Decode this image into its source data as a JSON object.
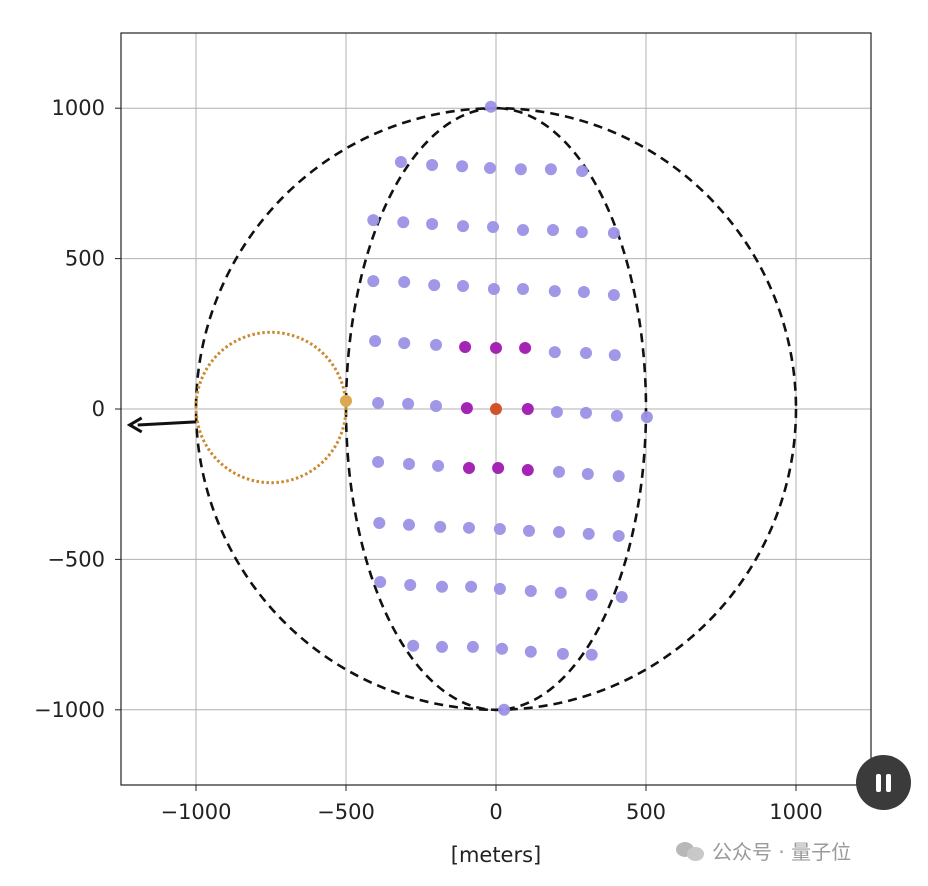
{
  "chart_data": {
    "type": "scatter",
    "xlabel": "[meters]",
    "ylabel": "",
    "xlim": [
      -1250,
      1250
    ],
    "ylim": [
      -1250,
      1250
    ],
    "xticks": [
      -1000,
      -500,
      0,
      500,
      1000
    ],
    "yticks": [
      -1000,
      -500,
      0,
      500,
      1000
    ],
    "xtick_labels": [
      "−1000",
      "−500",
      "0",
      "500",
      "1000"
    ],
    "ytick_labels": [
      "−1000",
      "−500",
      "0",
      "500",
      "1000"
    ],
    "grid": true,
    "colors": {
      "light": "#9b92e6",
      "magenta": "#a424b4",
      "center": "#d2522a",
      "gold": "#dca850",
      "orange_ring": "#c98a30",
      "dashed": "#111111",
      "arrow": "#111111"
    },
    "outlines": [
      {
        "shape": "circle",
        "cx": 0,
        "cy": 0,
        "rx": 1000,
        "ry": 1000,
        "style": "dashed",
        "color": "#111111"
      },
      {
        "shape": "ellipse",
        "cx": 0,
        "cy": 0,
        "rx": 500,
        "ry": 1000,
        "style": "dashed",
        "color": "#111111"
      },
      {
        "shape": "circle",
        "cx": -750,
        "cy": 5,
        "rx": 250,
        "ry": 250,
        "style": "dotted",
        "color": "#c98a30"
      }
    ],
    "arrow": {
      "from": [
        -1000,
        -43
      ],
      "to": [
        -1221,
        -53
      ]
    },
    "gold_point": [
      -500,
      27
    ],
    "center_point": [
      0,
      0
    ],
    "light_points": [
      [
        -17,
        1005
      ],
      [
        -317,
        821
      ],
      [
        -213,
        811
      ],
      [
        -113,
        807
      ],
      [
        -20,
        801
      ],
      [
        83,
        797
      ],
      [
        183,
        797
      ],
      [
        287,
        791
      ],
      [
        -409,
        628
      ],
      [
        -309,
        621
      ],
      [
        -213,
        615
      ],
      [
        -110,
        608
      ],
      [
        -10,
        605
      ],
      [
        90,
        595
      ],
      [
        190,
        595
      ],
      [
        286,
        588
      ],
      [
        393,
        585
      ],
      [
        -409,
        425
      ],
      [
        -306,
        422
      ],
      [
        -206,
        412
      ],
      [
        -110,
        409
      ],
      [
        -7,
        399
      ],
      [
        90,
        399
      ],
      [
        196,
        392
      ],
      [
        293,
        389
      ],
      [
        393,
        379
      ],
      [
        -403,
        226
      ],
      [
        -306,
        219
      ],
      [
        -200,
        213
      ],
      [
        196,
        189
      ],
      [
        300,
        186
      ],
      [
        396,
        179
      ],
      [
        -393,
        20
      ],
      [
        -293,
        17
      ],
      [
        -200,
        10
      ],
      [
        203,
        -10
      ],
      [
        300,
        -13
      ],
      [
        403,
        -23
      ],
      [
        503,
        -27
      ],
      [
        -393,
        -176
      ],
      [
        -290,
        -183
      ],
      [
        -193,
        -189
      ],
      [
        210,
        -209
      ],
      [
        306,
        -216
      ],
      [
        409,
        -223
      ],
      [
        -389,
        -379
      ],
      [
        -290,
        -385
      ],
      [
        -186,
        -392
      ],
      [
        -90,
        -395
      ],
      [
        13,
        -399
      ],
      [
        110,
        -405
      ],
      [
        210,
        -409
      ],
      [
        309,
        -415
      ],
      [
        409,
        -422
      ],
      [
        -386,
        -575
      ],
      [
        -286,
        -585
      ],
      [
        -180,
        -591
      ],
      [
        -83,
        -591
      ],
      [
        13,
        -598
      ],
      [
        116,
        -605
      ],
      [
        216,
        -611
      ],
      [
        319,
        -618
      ],
      [
        419,
        -625
      ],
      [
        -276,
        -787
      ],
      [
        -180,
        -791
      ],
      [
        -77,
        -791
      ],
      [
        20,
        -797
      ],
      [
        116,
        -807
      ],
      [
        223,
        -814
      ],
      [
        319,
        -817
      ],
      [
        27,
        -1000
      ]
    ],
    "magenta_points": [
      [
        -103,
        206
      ],
      [
        0,
        203
      ],
      [
        97,
        203
      ],
      [
        -97,
        3
      ],
      [
        106,
        0
      ],
      [
        -90,
        -196
      ],
      [
        7,
        -196
      ],
      [
        106,
        -203
      ]
    ]
  },
  "watermark": {
    "text": "公众号 · 量子位"
  },
  "player": {
    "pause_icon": "pause-icon"
  }
}
